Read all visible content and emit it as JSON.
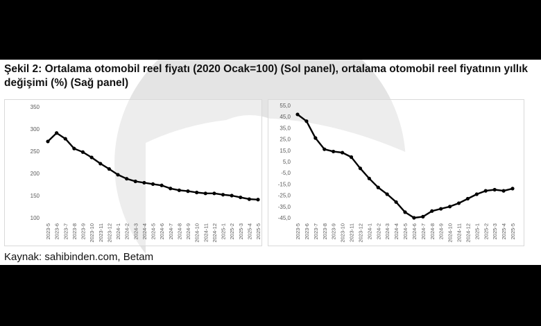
{
  "caption": "Şekil 2: Ortalama otomobil reel fiyatı (2020 Ocak=100) (Sol panel), ortalama otomobil reel fiyatının yıllık değişimi (%) (Sağ panel)",
  "source": "Kaynak: sahibinden.com, Betam",
  "colors": {
    "line": "#000000",
    "axis_text": "#595959",
    "background": "#ffffff",
    "border": "#d9d9d9"
  },
  "chart_data": [
    {
      "type": "line",
      "categories": [
        "2023-5",
        "2023-6",
        "2023-7",
        "2023-8",
        "2023-9",
        "2023-10",
        "2023-11",
        "2023-12",
        "2024-1",
        "2024-2",
        "2024-3",
        "2024-4",
        "2024-5",
        "2024-6",
        "2024-7",
        "2024-8",
        "2024-9",
        "2024-10",
        "2024-11",
        "2024-12",
        "2025-1",
        "2025-2",
        "2025-3",
        "2025-4",
        "2025-5"
      ],
      "series": [
        {
          "values": [
            272,
            291,
            278,
            256,
            248,
            236,
            222,
            210,
            197,
            188,
            182,
            179,
            176,
            173,
            166,
            162,
            160,
            157,
            155,
            155,
            152,
            150,
            146,
            142,
            141
          ]
        }
      ],
      "ylim": [
        100,
        350
      ],
      "yticks": [
        "100",
        "150",
        "200",
        "250",
        "300",
        "350"
      ],
      "grid": false,
      "legend": "none"
    },
    {
      "type": "line",
      "categories": [
        "2023-5",
        "2023-6",
        "2023-7",
        "2023-8",
        "2023-9",
        "2023-10",
        "2023-11",
        "2023-12",
        "2024-1",
        "2024-2",
        "2024-3",
        "2024-4",
        "2024-5",
        "2024-6",
        "2024-7",
        "2024-8",
        "2024-9",
        "2024-10",
        "2024-11",
        "2024-12",
        "2025-1",
        "2025-2",
        "2025-3",
        "2025-4",
        "2025-5"
      ],
      "series": [
        {
          "values": [
            47,
            41,
            26,
            16,
            14,
            13,
            9,
            -1,
            -10,
            -18,
            -24,
            -31,
            -40,
            -45,
            -44,
            -39,
            -37,
            -35,
            -32,
            -28,
            -24,
            -21,
            -20,
            -21,
            -19
          ]
        }
      ],
      "ylim": [
        -45,
        55
      ],
      "yticks": [
        "55,0",
        "45,0",
        "35,0",
        "25,0",
        "15,0",
        "5,0",
        "-5,0",
        "-15,0",
        "-25,0",
        "-35,0",
        "-45,0"
      ],
      "grid": false,
      "legend": "none"
    }
  ]
}
